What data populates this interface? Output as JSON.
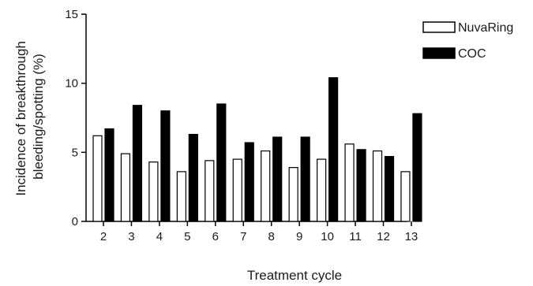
{
  "chart_data": {
    "type": "bar",
    "xlabel": "Treatment cycle",
    "ylabel_lines": [
      "Incidence of breakthrough",
      "bleeding/spotting (%)"
    ],
    "ylim": [
      0,
      15
    ],
    "yticks": [
      0,
      5,
      10,
      15
    ],
    "categories": [
      "2",
      "3",
      "4",
      "5",
      "6",
      "7",
      "8",
      "9",
      "10",
      "11",
      "12",
      "13"
    ],
    "series": [
      {
        "name": "NuvaRing",
        "fill": "#ffffff",
        "values": [
          6.2,
          4.9,
          4.3,
          3.6,
          4.4,
          4.5,
          5.1,
          3.9,
          4.5,
          5.6,
          5.1,
          3.6
        ]
      },
      {
        "name": "COC",
        "fill": "#000000",
        "values": [
          6.7,
          8.4,
          8.0,
          6.3,
          8.5,
          5.7,
          6.1,
          6.1,
          10.4,
          5.2,
          4.7,
          7.8
        ]
      }
    ],
    "legend": "top-right",
    "grid": false
  }
}
